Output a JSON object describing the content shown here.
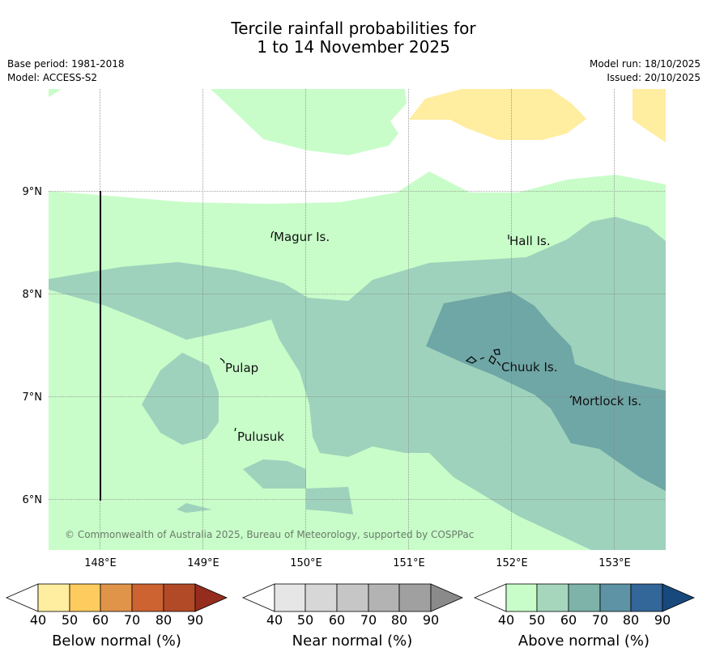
{
  "title": {
    "line1": "Tercile rainfall probabilities for",
    "line2": "1 to 14 November 2025"
  },
  "meta": {
    "base_period": "Base period: 1981-2018",
    "model": "Model: ACCESS-S2",
    "model_run": "Model run: 18/10/2025",
    "issued": "Issued: 20/10/2025"
  },
  "axes": {
    "x_labels": [
      "148°E",
      "149°E",
      "150°E",
      "151°E",
      "152°E",
      "153°E"
    ],
    "y_labels": [
      "9°N",
      "8°N",
      "7°N",
      "6°N"
    ]
  },
  "places": {
    "magur": "Magur Is.",
    "hall": "Hall Is.",
    "pulap": "Pulap",
    "chuuk": "Chuuk Is.",
    "mortlock": "Mortlock Is.",
    "pulusuk": "Pulusuk"
  },
  "copyright": "© Commonwealth of Australia 2025, Bureau of Meteorology, supported by COSPPac",
  "legend": {
    "below": {
      "title": "Below normal (%)",
      "ticks": [
        "40",
        "50",
        "60",
        "70",
        "80",
        "90"
      ],
      "colors": [
        "#ffffff",
        "#ffeda0",
        "#fecb5e",
        "#e0944a",
        "#cc6331",
        "#b24a28",
        "#952d1e"
      ]
    },
    "near": {
      "title": "Near normal (%)",
      "ticks": [
        "40",
        "50",
        "60",
        "70",
        "80",
        "90"
      ],
      "colors": [
        "#ffffff",
        "#e6e6e6",
        "#d7d7d7",
        "#c6c6c6",
        "#b3b3b3",
        "#a0a0a0",
        "#8a8a8a"
      ]
    },
    "above": {
      "title": "Above normal (%)",
      "ticks": [
        "40",
        "50",
        "60",
        "70",
        "80",
        "90"
      ],
      "colors": [
        "#ffffff",
        "#c8fdc9",
        "#a6d7bd",
        "#7db3a8",
        "#5d93a4",
        "#336699",
        "#18497d"
      ]
    }
  },
  "map_colors": {
    "above_40_50": "#c8fdc9",
    "above_50_60": "#9ed2bc",
    "above_60_70": "#6fa6a6",
    "below_40_50": "#ffeda0"
  }
}
